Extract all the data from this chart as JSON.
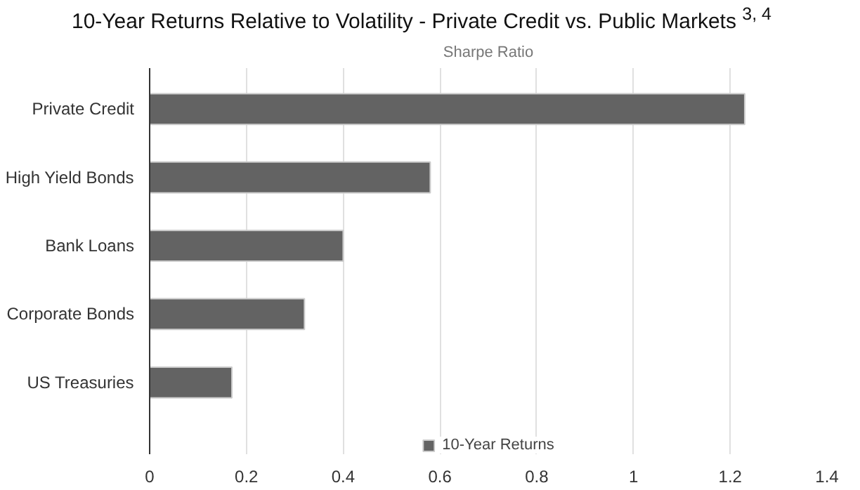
{
  "chart_data": {
    "type": "bar",
    "orientation": "horizontal",
    "title": "10-Year Returns Relative to Volatility - Private Credit vs. Public Markets $^{3, 4}$",
    "subtitle": "Sharpe Ratio",
    "categories": [
      "Private Credit",
      "High Yield Bonds",
      "Bank Loans",
      "Corporate Bonds",
      "US Treasuries"
    ],
    "series": [
      {
        "name": "10-Year Returns",
        "color": "#636363",
        "values": [
          1.23,
          0.58,
          0.4,
          0.32,
          0.17
        ]
      }
    ],
    "xlim": [
      0,
      1.4
    ],
    "xticks": [
      0,
      0.2,
      0.4,
      0.6,
      0.8,
      1,
      1.2,
      1.4
    ],
    "grid": "x",
    "legend": "bottom"
  }
}
